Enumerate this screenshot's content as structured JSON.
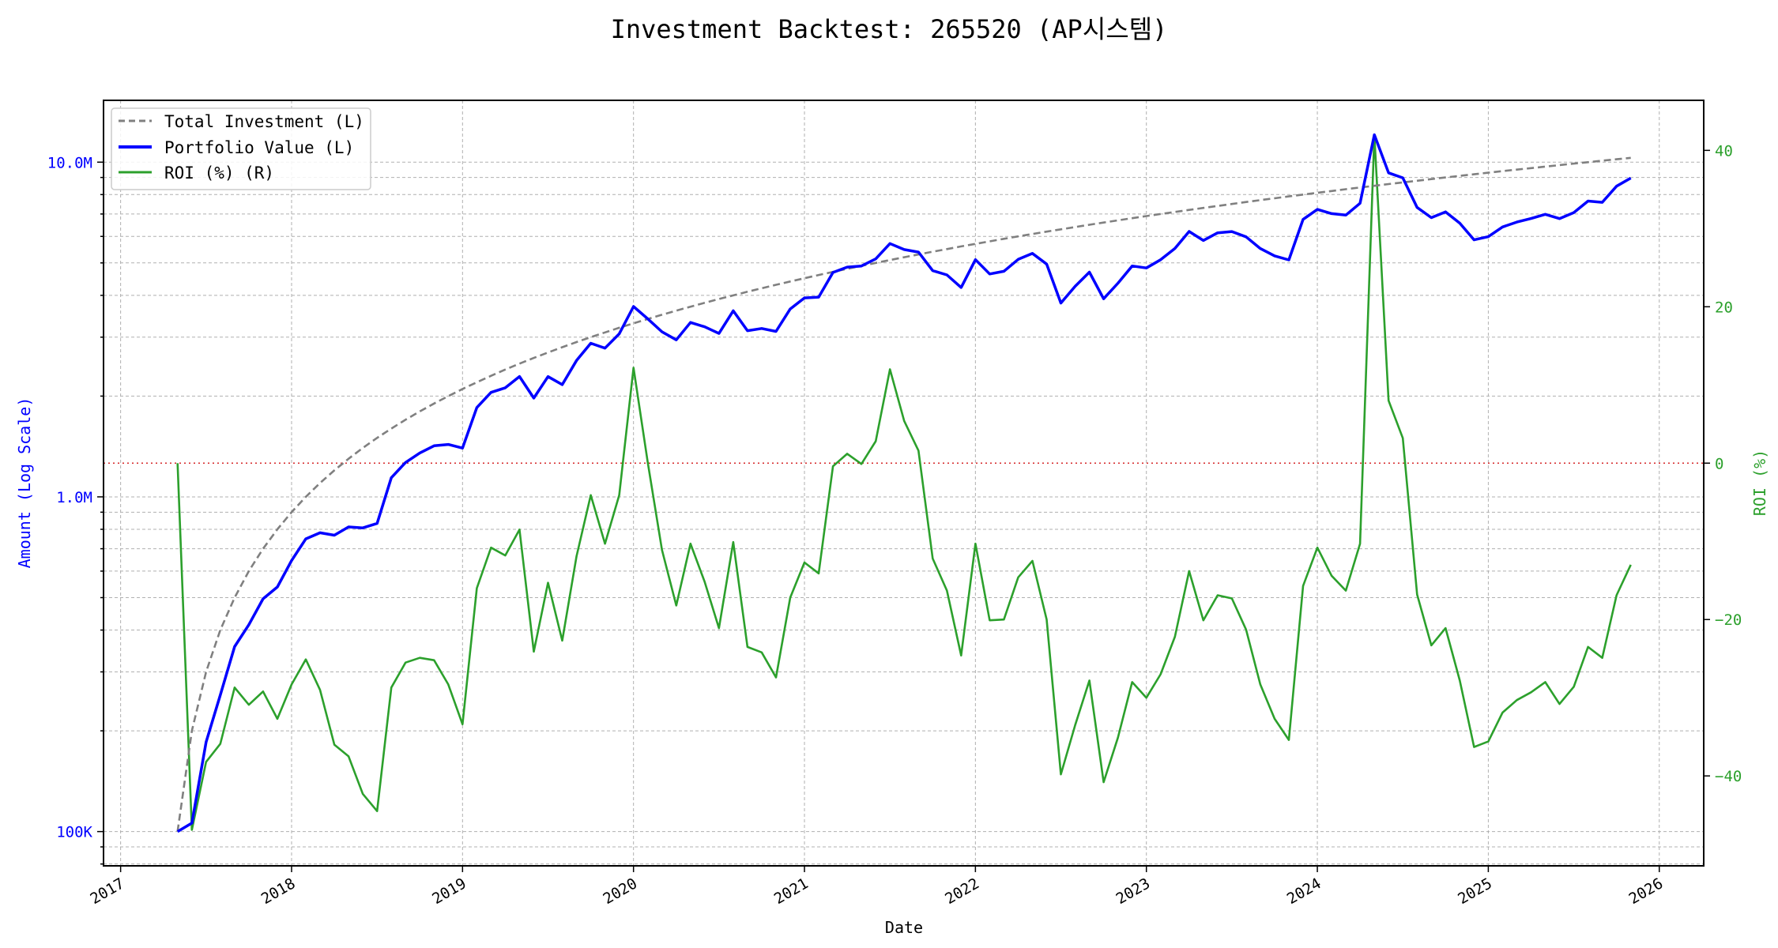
{
  "chart_data": {
    "type": "line",
    "title": "Investment Backtest: 265520 (AP시스템)",
    "xlabel": "Date",
    "ylabel_left": "Amount (Log Scale)",
    "ylabel_right": "ROI (%)",
    "start_month": "2017-05",
    "frequency": "monthly",
    "x_ticks": [
      "2017",
      "2018",
      "2019",
      "2020",
      "2021",
      "2022",
      "2023",
      "2024",
      "2025",
      "2026"
    ],
    "y_left_ticks": [
      {
        "value": 100000,
        "label": "100K"
      },
      {
        "value": 1000000,
        "label": "1.0M"
      },
      {
        "value": 10000000,
        "label": "10.0M"
      }
    ],
    "y_right_ticks": [
      {
        "value": -40,
        "label": "−40"
      },
      {
        "value": -20,
        "label": "−20"
      },
      {
        "value": 0,
        "label": "0"
      },
      {
        "value": 20,
        "label": "20"
      },
      {
        "value": 40,
        "label": "40"
      }
    ],
    "y_left_scale": "log",
    "y_left_range": [
      79000,
      15300000
    ],
    "y_right_range": [
      -51.5,
      46.4
    ],
    "x_range": [
      2016.9,
      2026.26
    ],
    "grid": true,
    "legend_position": "top-left",
    "reference_line": {
      "axis": "right",
      "value": 0,
      "color": "#d62728",
      "style": "dotted"
    },
    "series": [
      {
        "name": "Total Investment (L)",
        "axis": "left",
        "color": "#808080",
        "style": "dashed",
        "unit": "thousands",
        "values": [
          100,
          200,
          300,
          400,
          500,
          600,
          700,
          800,
          900,
          1000,
          1100,
          1200,
          1300,
          1400,
          1500,
          1600,
          1700,
          1800,
          1900,
          2000,
          2100,
          2200,
          2300,
          2400,
          2500,
          2600,
          2700,
          2800,
          2900,
          3000,
          3100,
          3200,
          3300,
          3400,
          3500,
          3600,
          3700,
          3800,
          3900,
          4000,
          4100,
          4200,
          4300,
          4400,
          4500,
          4600,
          4700,
          4800,
          4900,
          5000,
          5100,
          5200,
          5300,
          5400,
          5500,
          5600,
          5700,
          5800,
          5900,
          6000,
          6100,
          6200,
          6300,
          6400,
          6500,
          6600,
          6700,
          6800,
          6900,
          7000,
          7100,
          7200,
          7300,
          7400,
          7500,
          7600,
          7700,
          7800,
          7900,
          8000,
          8100,
          8200,
          8300,
          8400,
          8500,
          8600,
          8700,
          8800,
          8900,
          9000,
          9100,
          9200,
          9300,
          9400,
          9500,
          9600,
          9700,
          9800,
          9900,
          10000,
          10100,
          10200,
          10300
        ]
      },
      {
        "name": "Portfolio Value (L)",
        "axis": "left",
        "color": "#0000ff",
        "style": "solid",
        "unit": "thousands",
        "values": [
          100,
          106,
          185,
          256,
          357,
          415,
          496,
          538,
          645,
          749,
          781,
          768,
          813,
          808,
          833,
          1141,
          1267,
          1352,
          1421,
          1434,
          1399,
          1848,
          2052,
          2117,
          2288,
          1973,
          2287,
          2164,
          2555,
          2877,
          2781,
          3069,
          3703,
          3403,
          3112,
          2945,
          3319,
          3222,
          3077,
          3596,
          3137,
          3184,
          3122,
          3643,
          3929,
          3951,
          4681,
          4858,
          4895,
          5140,
          5712,
          5481,
          5385,
          4741,
          4604,
          4222,
          5113,
          4634,
          4720,
          5124,
          5338,
          4960,
          3793,
          4256,
          4693,
          3907,
          4348,
          4896,
          4830,
          5110,
          5524,
          6206,
          5833,
          6149,
          6203,
          5981,
          5521,
          5249,
          5103,
          6744,
          7225,
          7019,
          6947,
          7535,
          12070,
          9288,
          8978,
          7322,
          6826,
          7101,
          6570,
          5860,
          5989,
          6401,
          6622,
          6787,
          6984,
          6782,
          7069,
          7650,
          7585,
          8476,
          8961
        ]
      },
      {
        "name": "ROI (%) (R)",
        "axis": "right",
        "color": "#2ca02c",
        "style": "solid",
        "values": [
          0,
          -46.9,
          -38.2,
          -35.9,
          -28.7,
          -30.9,
          -29.2,
          -32.7,
          -28.3,
          -25.1,
          -29.0,
          -36.0,
          -37.5,
          -42.3,
          -44.5,
          -28.7,
          -25.5,
          -24.9,
          -25.2,
          -28.3,
          -33.4,
          -16.0,
          -10.8,
          -11.8,
          -8.5,
          -24.1,
          -15.3,
          -22.7,
          -11.9,
          -4.1,
          -10.3,
          -4.1,
          12.2,
          0.1,
          -11.1,
          -18.2,
          -10.3,
          -15.2,
          -21.1,
          -10.1,
          -23.5,
          -24.2,
          -27.4,
          -17.2,
          -12.7,
          -14.1,
          -0.4,
          1.2,
          -0.1,
          2.8,
          12.0,
          5.4,
          1.6,
          -12.2,
          -16.3,
          -24.6,
          -10.3,
          -20.1,
          -20.0,
          -14.6,
          -12.5,
          -20.0,
          -39.8,
          -33.5,
          -27.8,
          -40.8,
          -35.1,
          -28.0,
          -30.0,
          -27.0,
          -22.2,
          -13.8,
          -20.1,
          -16.9,
          -17.3,
          -21.3,
          -28.3,
          -32.7,
          -35.4,
          -15.7,
          -10.8,
          -14.4,
          -16.3,
          -10.3,
          42.0,
          8.0,
          3.2,
          -16.8,
          -23.3,
          -21.1,
          -27.8,
          -36.3,
          -35.6,
          -31.9,
          -30.3,
          -29.3,
          -28.0,
          -30.8,
          -28.6,
          -23.5,
          -24.9,
          -16.9,
          -13.0
        ]
      }
    ]
  }
}
